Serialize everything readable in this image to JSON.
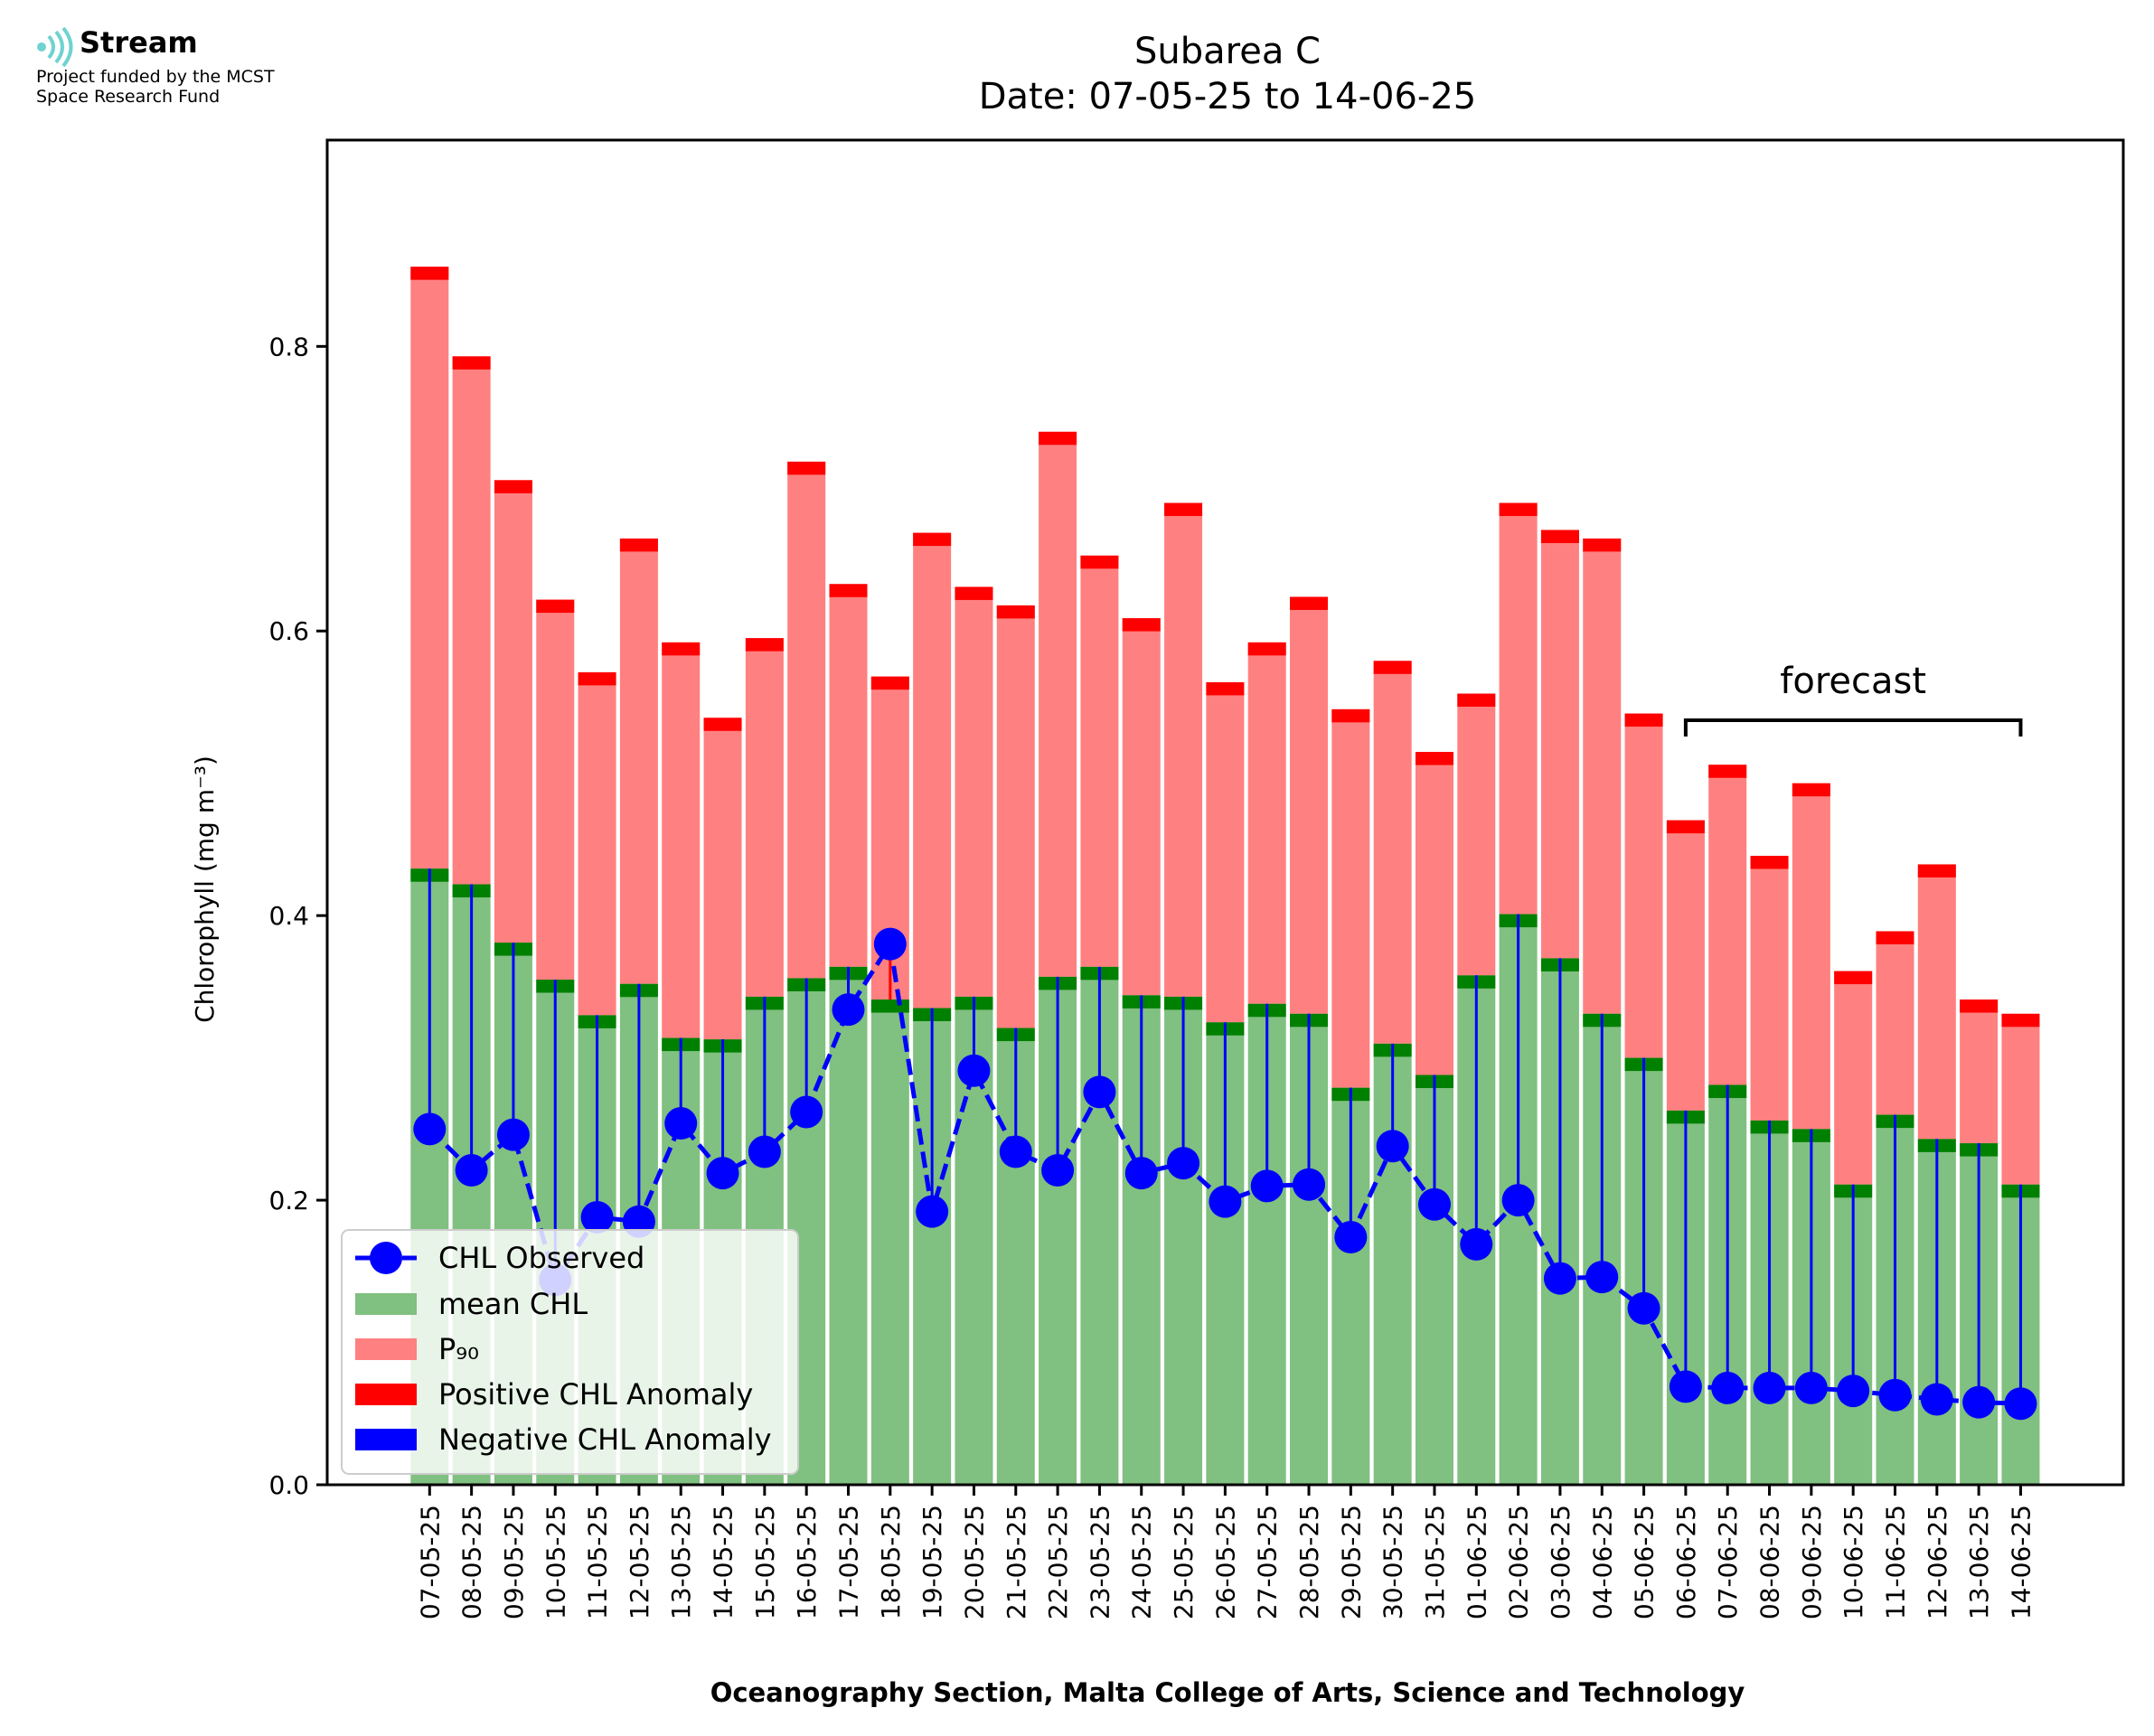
{
  "branding": {
    "name": "Stream",
    "line1": "Project funded by the MCST",
    "line2": "Space Research Fund",
    "icon": "stream-waves-icon",
    "icon_color": "#6fd3d0"
  },
  "chart_data": {
    "type": "bar",
    "title": "Subarea C",
    "subtitle": "Date: 07-05-25 to 14-06-25",
    "xlabel": "Oceanography Section, Malta College of Arts, Science and Technology",
    "ylabel": "Chlorophyll (mg m⁻³)",
    "ylim": [
      0,
      0.945
    ],
    "yticks": [
      0.0,
      0.2,
      0.4,
      0.6,
      0.8
    ],
    "ytick_labels": [
      "0.0",
      "0.2",
      "0.4",
      "0.6",
      "0.8"
    ],
    "annotation": "forecast",
    "forecast_range": [
      "06-06-25",
      "14-06-25"
    ],
    "grid": false,
    "legend_position": "lower-left",
    "colors": {
      "mean": "#80c080",
      "p90": "#ff8080",
      "positive_anomaly": "#ff0000",
      "negative_anomaly": "#0000ff",
      "mean_cap": "#008000",
      "observed": "#0000ff"
    },
    "legend": [
      "CHL Observed",
      "mean CHL",
      "P₉₀",
      "Positive CHL Anomaly",
      "Negative CHL Anomaly"
    ],
    "categories": [
      "07-05-25",
      "08-05-25",
      "09-05-25",
      "10-05-25",
      "11-05-25",
      "12-05-25",
      "13-05-25",
      "14-05-25",
      "15-05-25",
      "16-05-25",
      "17-05-25",
      "18-05-25",
      "19-05-25",
      "20-05-25",
      "21-05-25",
      "22-05-25",
      "23-05-25",
      "24-05-25",
      "25-05-25",
      "26-05-25",
      "27-05-25",
      "28-05-25",
      "29-05-25",
      "30-05-25",
      "31-05-25",
      "01-06-25",
      "02-06-25",
      "03-06-25",
      "04-06-25",
      "05-06-25",
      "06-06-25",
      "07-06-25",
      "08-06-25",
      "09-06-25",
      "10-06-25",
      "11-06-25",
      "12-06-25",
      "13-06-25",
      "14-06-25"
    ],
    "series": [
      {
        "name": "mean CHL",
        "values": [
          0.433,
          0.422,
          0.381,
          0.355,
          0.33,
          0.352,
          0.314,
          0.313,
          0.343,
          0.356,
          0.364,
          0.341,
          0.335,
          0.343,
          0.321,
          0.357,
          0.364,
          0.344,
          0.343,
          0.325,
          0.338,
          0.331,
          0.279,
          0.31,
          0.288,
          0.358,
          0.401,
          0.37,
          0.331,
          0.3,
          0.263,
          0.281,
          0.256,
          0.25,
          0.211,
          0.26,
          0.243,
          0.24,
          0.211
        ]
      },
      {
        "name": "P₉₀",
        "values": [
          0.856,
          0.793,
          0.706,
          0.622,
          0.571,
          0.665,
          0.592,
          0.539,
          0.595,
          0.719,
          0.633,
          0.568,
          0.669,
          0.631,
          0.618,
          0.74,
          0.653,
          0.609,
          0.69,
          0.564,
          0.592,
          0.624,
          0.545,
          0.579,
          0.515,
          0.556,
          0.69,
          0.671,
          0.665,
          0.542,
          0.467,
          0.506,
          0.442,
          0.493,
          0.361,
          0.389,
          0.436,
          0.341,
          0.331
        ]
      },
      {
        "name": "CHL Observed",
        "values": [
          0.25,
          0.221,
          0.246,
          0.144,
          0.188,
          0.185,
          0.254,
          0.219,
          0.234,
          0.262,
          0.334,
          0.38,
          0.192,
          0.291,
          0.234,
          0.221,
          0.276,
          0.219,
          0.226,
          0.199,
          0.21,
          0.211,
          0.174,
          0.238,
          0.197,
          0.169,
          0.2,
          0.145,
          0.146,
          0.124,
          0.069,
          0.068,
          0.068,
          0.068,
          0.066,
          0.063,
          0.06,
          0.058,
          0.057
        ]
      }
    ]
  }
}
